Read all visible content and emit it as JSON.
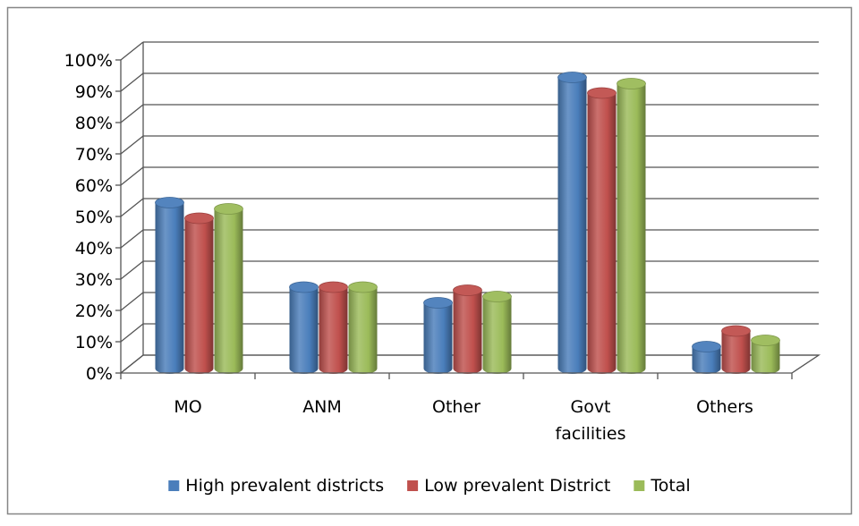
{
  "chart_data": {
    "type": "bar",
    "title": "",
    "xlabel": "",
    "ylabel": "",
    "categories": [
      "MO",
      "ANM",
      "Other",
      "Govt facilities",
      "Others"
    ],
    "category_lines": [
      [
        "MO"
      ],
      [
        "ANM"
      ],
      [
        "Other"
      ],
      [
        "Govt",
        "facilities"
      ],
      [
        "Others"
      ]
    ],
    "series": [
      {
        "name": "High prevalent districts",
        "values": [
          53,
          26,
          21,
          93,
          7
        ],
        "color": "#4a7ebb"
      },
      {
        "name": "Low prevalent District",
        "values": [
          48,
          26,
          25,
          88,
          12
        ],
        "color": "#c0504d"
      },
      {
        "name": "Total",
        "values": [
          51,
          26,
          23,
          91,
          9
        ],
        "color": "#9bbb59"
      }
    ],
    "ylim": [
      0,
      100
    ],
    "yticks": [
      "0%",
      "10%",
      "20%",
      "30%",
      "40%",
      "50%",
      "60%",
      "70%",
      "80%",
      "90%",
      "100%"
    ],
    "grid": true,
    "legend_position": "bottom",
    "style": "3d-cylinder"
  }
}
